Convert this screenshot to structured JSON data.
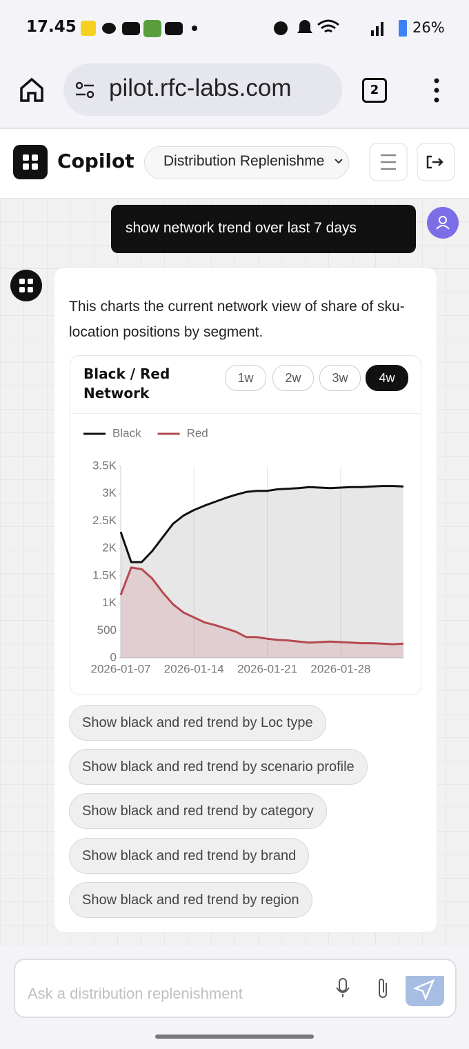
{
  "status_bar": {
    "time": "17.45",
    "battery": "26%"
  },
  "browser": {
    "url": "pilot.rfc-labs.com",
    "tab_count": "2"
  },
  "app": {
    "name": "Copilot",
    "selector": "Distribution Replenishme"
  },
  "user_message": "show network trend over last 7 days",
  "assistant": {
    "text": "This charts the current network view of share of sku-location positions by segment.",
    "card_title": "Black / Red Network",
    "ranges": [
      "1w",
      "2w",
      "3w",
      "4w"
    ],
    "active_range": "4w",
    "suggestions": [
      "Show black and red trend by Loc type",
      "Show black and red trend by scenario profile",
      "Show black and red trend by category",
      "Show black and red trend by brand",
      "Show black and red trend by region"
    ]
  },
  "input_placeholder": "Ask a distribution replenishment",
  "chart_data": {
    "type": "line",
    "area": true,
    "legend": "top-left",
    "grid": true,
    "x": [
      "2026-01-07",
      "2026-01-08",
      "2026-01-09",
      "2026-01-10",
      "2026-01-11",
      "2026-01-12",
      "2026-01-13",
      "2026-01-14",
      "2026-01-15",
      "2026-01-16",
      "2026-01-17",
      "2026-01-18",
      "2026-01-19",
      "2026-01-20",
      "2026-01-21",
      "2026-01-22",
      "2026-01-23",
      "2026-01-24",
      "2026-01-25",
      "2026-01-26",
      "2026-01-27",
      "2026-01-28",
      "2026-01-29",
      "2026-01-30",
      "2026-01-31",
      "2026-02-01",
      "2026-02-02",
      "2026-02-03"
    ],
    "xlim": [
      "2026-01-07",
      "2026-02-03"
    ],
    "xticks": [
      "2026-01-07",
      "2026-01-14",
      "2026-01-21",
      "2026-01-28"
    ],
    "ylim": [
      0,
      3500
    ],
    "yticks": [
      0,
      500,
      {
        "value": 1000,
        "label": "1K"
      },
      {
        "value": 1500,
        "label": "1.5K"
      },
      {
        "value": 2000,
        "label": "2K"
      },
      {
        "value": 2500,
        "label": "2.5K"
      },
      {
        "value": 3000,
        "label": "3K"
      },
      {
        "value": 3500,
        "label": "3.5K"
      }
    ],
    "series": [
      {
        "name": "Black",
        "color": "#111111",
        "fill": "rgba(120,120,130,0.18)",
        "values": [
          2300,
          1750,
          1750,
          1950,
          2200,
          2450,
          2600,
          2700,
          2780,
          2850,
          2920,
          2980,
          3030,
          3050,
          3050,
          3080,
          3090,
          3100,
          3120,
          3110,
          3100,
          3110,
          3120,
          3120,
          3130,
          3140,
          3140,
          3130
        ]
      },
      {
        "name": "Red",
        "color": "#b5494f",
        "fill": "rgba(200,120,125,0.22)",
        "values": [
          1150,
          1650,
          1620,
          1450,
          1200,
          980,
          830,
          740,
          650,
          600,
          540,
          480,
          380,
          380,
          350,
          330,
          320,
          300,
          280,
          290,
          300,
          290,
          280,
          270,
          270,
          260,
          250,
          260
        ]
      }
    ]
  }
}
